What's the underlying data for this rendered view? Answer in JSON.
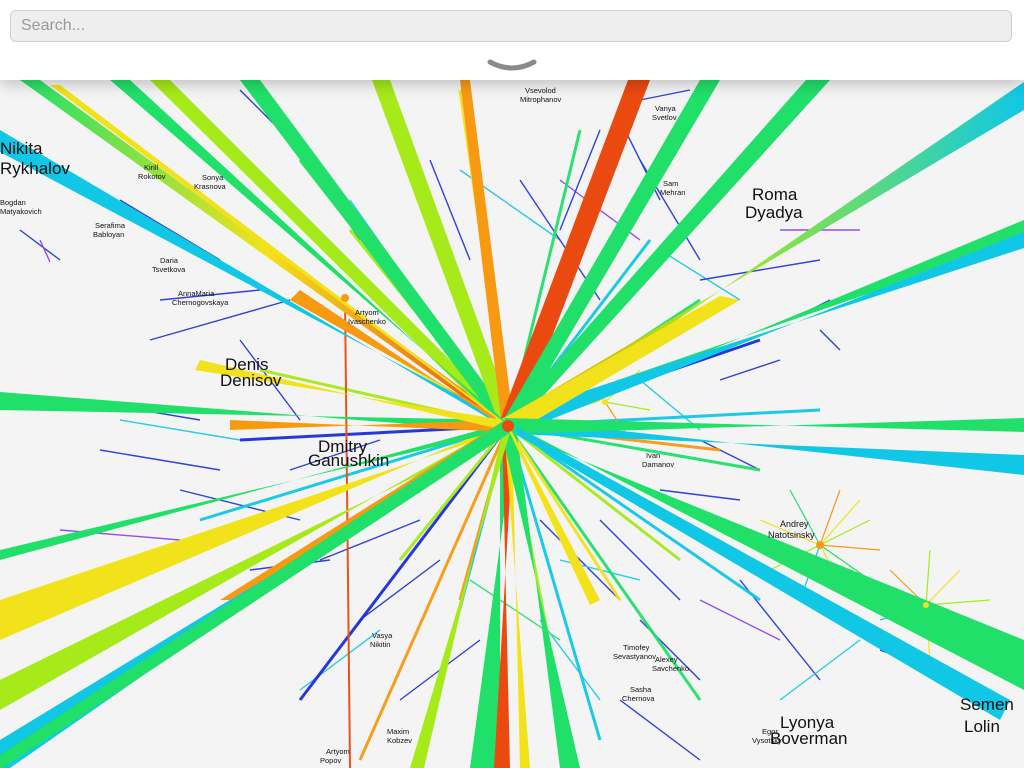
{
  "search": {
    "placeholder": "Search..."
  },
  "toggle": {
    "icon": "chevron-down-icon"
  },
  "graph": {
    "palette": [
      "#1a2fd6",
      "#8a3cf0",
      "#10c8e6",
      "#21e06a",
      "#a6ea1a",
      "#f2e21a",
      "#f79a12",
      "#ea4a10"
    ],
    "large_labels": [
      {
        "id": "nikita",
        "line1": "Nikita",
        "line2": "Rykhalov"
      },
      {
        "id": "roma",
        "line1": "Roma",
        "line2": "Dyadya"
      },
      {
        "id": "denis",
        "line1": "Denis",
        "line2": "Denisov"
      },
      {
        "id": "dmitry",
        "line1": "Dmitry",
        "line2": "Ganushkin"
      },
      {
        "id": "andrey",
        "line1": "Andrey",
        "line2": "Natotsinsky"
      },
      {
        "id": "lyonya",
        "line1": "Lyonya",
        "line2": "Boverman"
      },
      {
        "id": "semen",
        "line1": "Semen",
        "line2": "Lolin"
      }
    ],
    "small_labels": [
      {
        "id": "vsevolod",
        "line1": "Vsevolod",
        "line2": "Mitrophanov"
      },
      {
        "id": "vanya",
        "line1": "Vanya",
        "line2": "Svetlov"
      },
      {
        "id": "serafima",
        "line1": "Serafima",
        "line2": "Babloyan"
      },
      {
        "id": "daria",
        "line1": "Daria",
        "line2": "Tsvetkova"
      },
      {
        "id": "anna",
        "line1": "AnnaMaria",
        "line2": "Chernogovskaya"
      },
      {
        "id": "sonya",
        "line1": "Sonya",
        "line2": "Krasnova"
      },
      {
        "id": "kirill",
        "line1": "Kirill",
        "line2": "Rokotov"
      },
      {
        "id": "bogdan",
        "line1": "Bogdan",
        "line2": "Matyakovich"
      },
      {
        "id": "sam",
        "line1": "Sam",
        "line2": "Mehran"
      },
      {
        "id": "artyom",
        "line1": "Artyom",
        "line2": "Ivaschenko"
      },
      {
        "id": "ivan",
        "line1": "Ivan",
        "line2": "Damanov"
      },
      {
        "id": "timofey",
        "line1": "Timofey",
        "line2": "Sevastyanov"
      },
      {
        "id": "alexey",
        "line1": "Alexey",
        "line2": "Savchenko"
      },
      {
        "id": "maxim",
        "line1": "Maxim",
        "line2": "Kobzev"
      },
      {
        "id": "artyom2",
        "line1": "Artyom",
        "line2": "Popov"
      },
      {
        "id": "egor",
        "line1": "Egor",
        "line2": "Vysotsky"
      },
      {
        "id": "sasha",
        "line1": "Sasha",
        "line2": "Chernova"
      },
      {
        "id": "vasya",
        "line1": "Vasya",
        "line2": "Nikitin"
      }
    ]
  }
}
